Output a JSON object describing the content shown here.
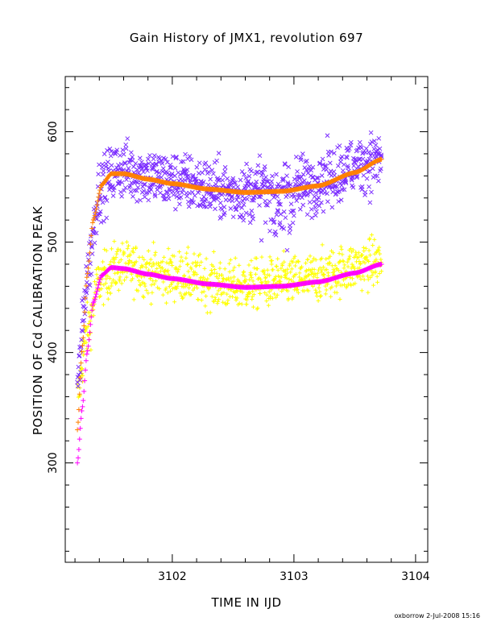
{
  "chart_data": {
    "type": "scatter",
    "title": "Gain History of JMX1, revolution 697",
    "xlabel": "TIME IN IJD",
    "ylabel": "POSITION OF Cd CALIBRATION PEAK",
    "xlim": [
      3101.12,
      3104.1
    ],
    "ylim": [
      210,
      650
    ],
    "x_ticks": [
      "3102",
      "3103",
      "3104"
    ],
    "y_ticks": [
      "300",
      "400",
      "500",
      "600"
    ],
    "series": [
      {
        "marker": "x",
        "color": "#7b2cff",
        "kind": "scatter",
        "x_range": [
          3101.22,
          3103.72
        ],
        "trend": [
          [
            3101.22,
            370
          ],
          [
            3101.3,
            470
          ],
          [
            3101.4,
            548
          ],
          [
            3101.55,
            566
          ],
          [
            3102.0,
            556
          ],
          [
            3102.5,
            545
          ],
          [
            3103.0,
            550
          ],
          [
            3103.72,
            575
          ]
        ],
        "spread": 14
      },
      {
        "marker": "+",
        "color": "#ffff00",
        "kind": "scatter",
        "x_range": [
          3101.22,
          3103.72
        ],
        "trend": [
          [
            3101.22,
            360
          ],
          [
            3101.3,
            420
          ],
          [
            3101.4,
            465
          ],
          [
            3101.55,
            478
          ],
          [
            3102.0,
            470
          ],
          [
            3102.5,
            460
          ],
          [
            3103.0,
            465
          ],
          [
            3103.72,
            482
          ]
        ],
        "spread": 12
      },
      {
        "marker": "+",
        "color": "#ff8000",
        "kind": "fit",
        "points": [
          [
            3101.22,
            330
          ],
          [
            3101.26,
            405
          ],
          [
            3101.3,
            470
          ],
          [
            3101.35,
            520
          ],
          [
            3101.42,
            552
          ],
          [
            3101.5,
            562
          ],
          [
            3101.6,
            562
          ],
          [
            3101.8,
            557
          ],
          [
            3102.0,
            553
          ],
          [
            3102.3,
            548
          ],
          [
            3102.6,
            545
          ],
          [
            3102.9,
            546
          ],
          [
            3103.2,
            551
          ],
          [
            3103.5,
            563
          ],
          [
            3103.72,
            575
          ]
        ]
      },
      {
        "marker": "+",
        "color": "#ff00ff",
        "kind": "fit",
        "points": [
          [
            3101.22,
            300
          ],
          [
            3101.26,
            350
          ],
          [
            3101.3,
            400
          ],
          [
            3101.35,
            445
          ],
          [
            3101.42,
            470
          ],
          [
            3101.5,
            477
          ],
          [
            3101.6,
            476
          ],
          [
            3101.8,
            471
          ],
          [
            3102.0,
            467
          ],
          [
            3102.3,
            462
          ],
          [
            3102.6,
            459
          ],
          [
            3102.9,
            460
          ],
          [
            3103.2,
            464
          ],
          [
            3103.5,
            472
          ],
          [
            3103.72,
            480
          ]
        ]
      }
    ],
    "grid": false,
    "legend": "none"
  },
  "footer": "oxborrow 2-Jul-2008 15:16"
}
